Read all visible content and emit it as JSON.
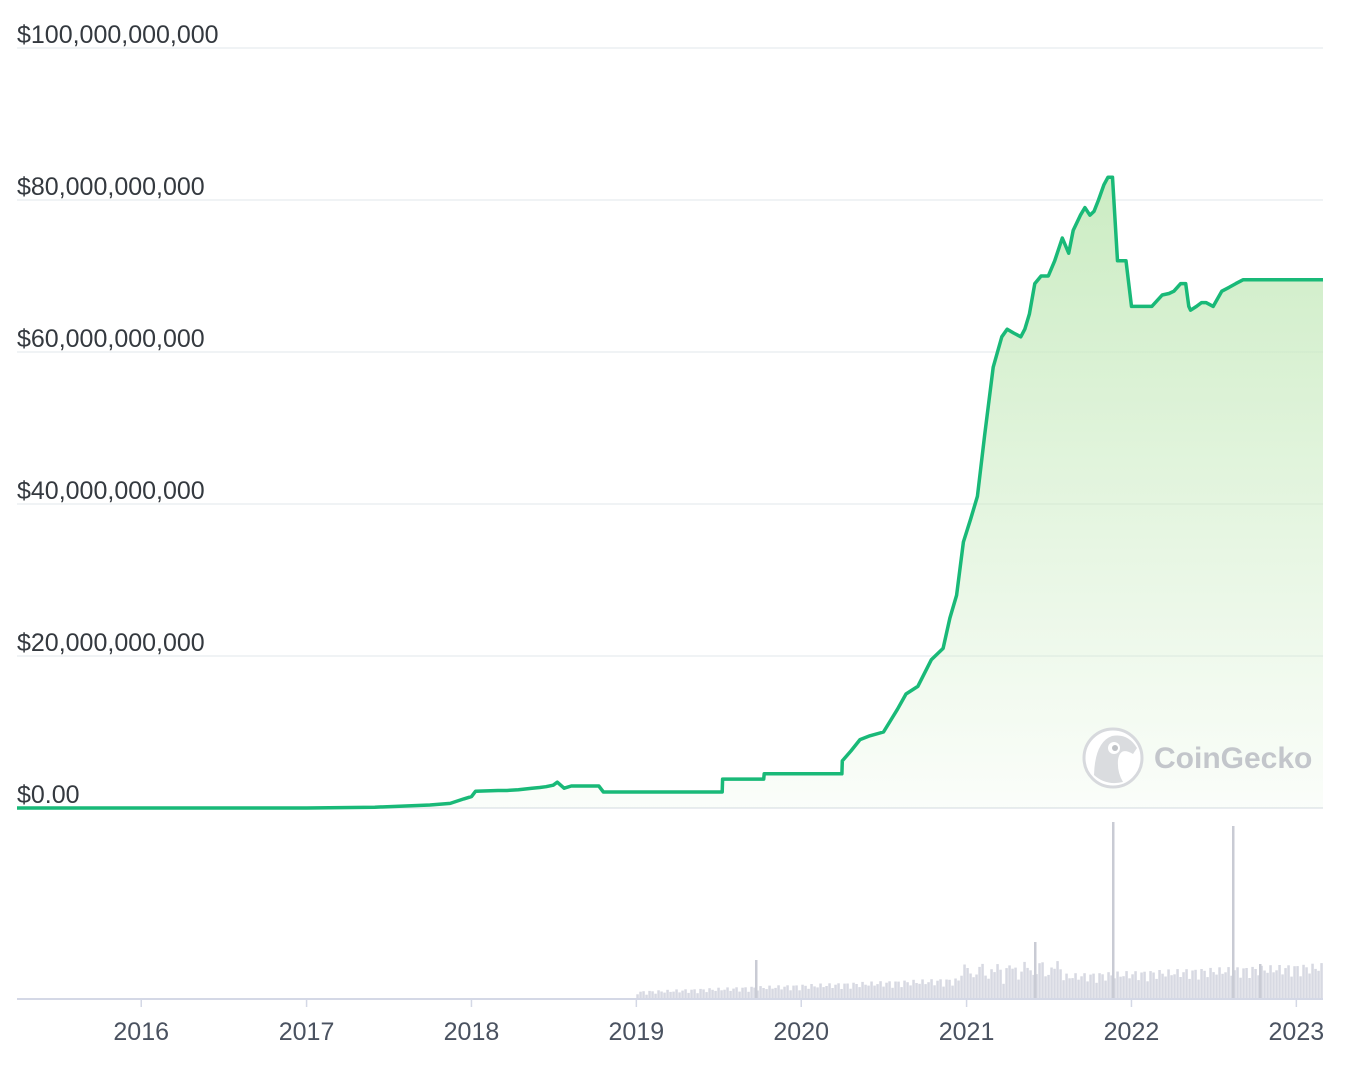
{
  "chart_data": {
    "type": "area",
    "title": "",
    "xlabel": "",
    "ylabel": "",
    "ylim": [
      0,
      100000000000
    ],
    "y_ticks": [
      "$0.00",
      "$20,000,000,000",
      "$40,000,000,000",
      "$60,000,000,000",
      "$80,000,000,000",
      "$100,000,000,000"
    ],
    "y_tick_values": [
      0,
      20000000000,
      40000000000,
      60000000000,
      80000000000,
      100000000000
    ],
    "x_ticks": [
      "2016",
      "2017",
      "2018",
      "2019",
      "2020",
      "2021",
      "2022",
      "2023"
    ],
    "x_range": [
      "2015-04-01",
      "2023-03-01"
    ],
    "grid": true,
    "colors": {
      "line": "#19b978",
      "fill": "#c9ebc0",
      "grid": "#eceff2",
      "volume": "#d7d9e2",
      "axis": "#d4d8e6"
    },
    "series": [
      {
        "x": [
          "2015-04-01",
          "2016-01-01",
          "2017-01-01",
          "2017-06-01",
          "2017-10-01",
          "2017-11-15",
          "2017-12-15",
          "2018-01-01",
          "2018-01-10",
          "2018-03-01",
          "2018-03-20",
          "2018-04-15",
          "2018-05-15",
          "2018-06-01",
          "2018-06-15",
          "2018-07-01",
          "2018-07-10",
          "2018-07-25",
          "2018-08-10",
          "2018-09-01",
          "2018-10-10",
          "2018-10-20",
          "2019-01-01",
          "2019-03-01",
          "2019-06-01",
          "2019-07-10",
          "2019-07-11",
          "2019-09-01",
          "2019-10-10",
          "2019-10-11",
          "2020-01-01",
          "2020-03-31",
          "2020-04-01",
          "2020-04-20",
          "2020-05-10",
          "2020-06-01",
          "2020-07-01",
          "2020-08-01",
          "2020-08-20",
          "2020-09-15",
          "2020-10-15",
          "2020-11-10",
          "2020-11-25",
          "2020-12-10",
          "2020-12-25",
          "2021-01-10",
          "2021-01-25",
          "2021-02-10",
          "2021-03-01",
          "2021-03-20",
          "2021-04-01",
          "2021-04-15",
          "2021-05-01",
          "2021-05-10",
          "2021-05-20",
          "2021-06-01",
          "2021-06-15",
          "2021-07-01",
          "2021-07-15",
          "2021-08-01",
          "2021-08-15",
          "2021-08-25",
          "2021-09-10",
          "2021-09-20",
          "2021-10-01",
          "2021-10-10",
          "2021-10-20",
          "2021-11-01",
          "2021-11-10",
          "2021-11-20",
          "2021-12-01",
          "2021-12-20",
          "2022-01-01",
          "2022-01-20",
          "2022-02-15",
          "2022-03-10",
          "2022-03-25",
          "2022-04-05",
          "2022-04-20",
          "2022-05-01",
          "2022-05-08",
          "2022-05-12",
          "2022-05-25",
          "2022-06-05",
          "2022-06-15",
          "2022-07-01",
          "2022-07-20",
          "2022-08-05",
          "2022-08-20",
          "2022-09-05",
          "2022-09-15",
          "2022-10-01",
          "2022-10-20",
          "2022-11-05",
          "2022-11-08",
          "2022-11-12",
          "2022-12-01",
          "2022-12-15",
          "2023-01-01",
          "2023-01-15",
          "2023-02-01",
          "2023-02-15",
          "2023-03-01"
        ],
        "values": [
          0,
          0,
          0,
          100000000,
          400000000,
          600000000,
          1200000000,
          1500000000,
          2200000000,
          2300000000,
          2300000000,
          2400000000,
          2600000000,
          2700000000,
          2800000000,
          3000000000,
          3400000000,
          2600000000,
          2900000000,
          2900000000,
          2900000000,
          2100000000,
          2100000000,
          2100000000,
          2100000000,
          2100000000,
          3800000000,
          3800000000,
          3800000000,
          4500000000,
          4500000000,
          4500000000,
          6200000000,
          7500000000,
          9000000000,
          9500000000,
          10000000000,
          13000000000,
          15000000000,
          16000000000,
          19500000000,
          21000000000,
          25000000000,
          28000000000,
          35000000000,
          38000000000,
          41000000000,
          49000000000,
          58000000000,
          62000000000,
          63000000000,
          62500000000,
          62000000000,
          63000000000,
          65000000000,
          69000000000,
          70000000000,
          70000000000,
          72000000000,
          75000000000,
          73000000000,
          76000000000,
          78000000000,
          79000000000,
          78000000000,
          78500000000,
          80000000000,
          82000000000,
          83000000000,
          83000000000,
          72000000000,
          72000000000,
          66000000000,
          66000000000,
          66000000000,
          67500000000,
          67700000000,
          68000000000,
          69000000000,
          69000000000,
          66000000000,
          65500000000,
          66000000000,
          66500000000,
          66500000000,
          66000000000,
          68000000000,
          68500000000,
          69000000000,
          69500000000,
          69500000000,
          69500000000,
          69500000000,
          69500000000,
          69500000000,
          69500000000,
          69500000000,
          69500000000,
          69500000000,
          69500000000,
          69500000000,
          69500000000,
          69500000000
        ]
      }
    ]
  },
  "watermark": {
    "brand": "CoinGecko",
    "icon": "gecko-logo-icon"
  }
}
